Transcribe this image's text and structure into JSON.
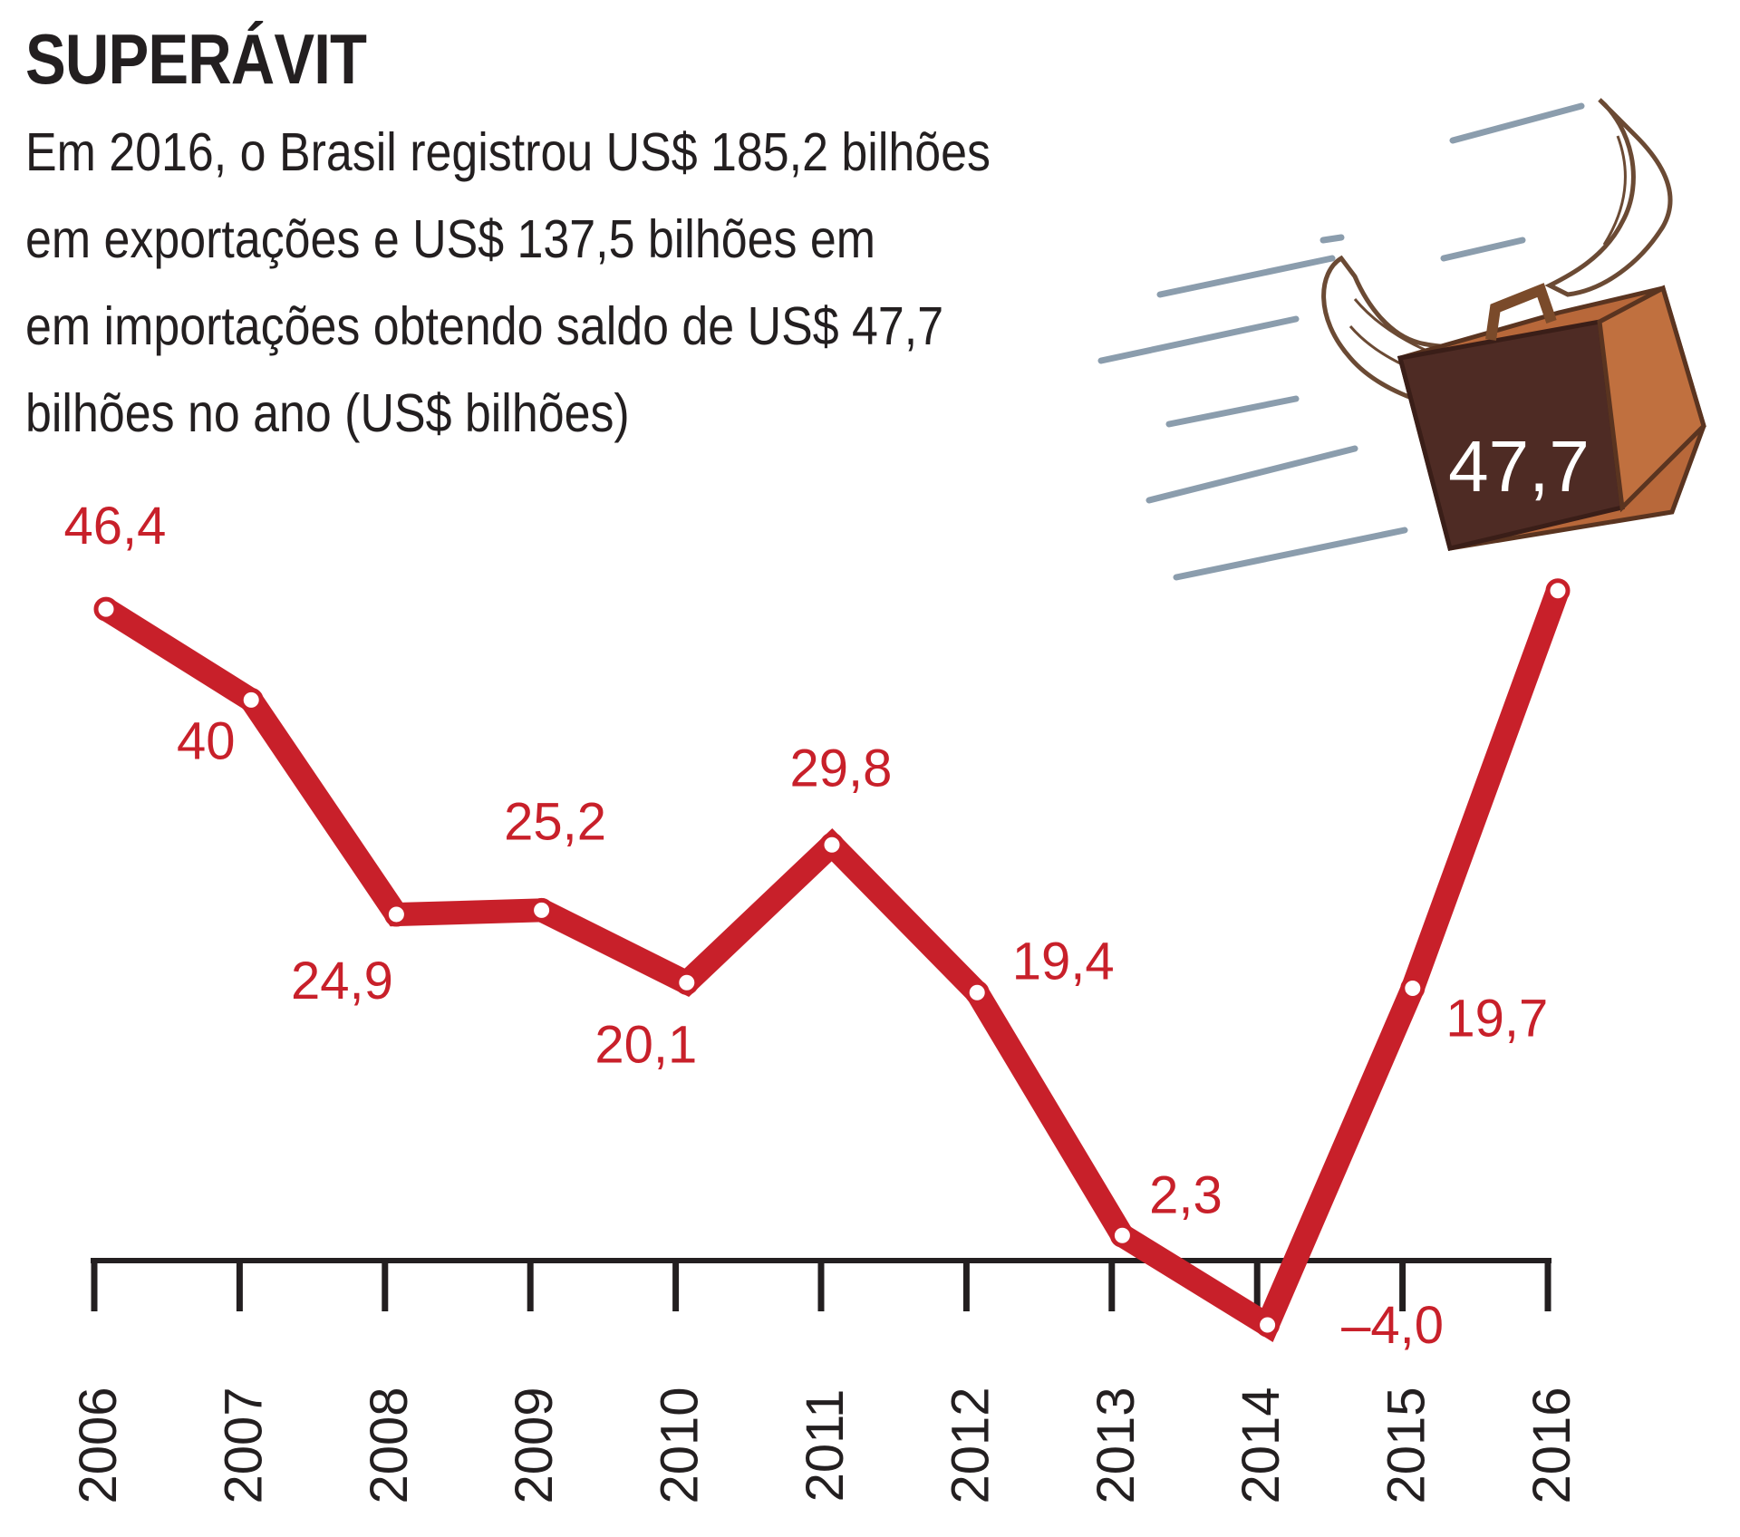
{
  "header": {
    "title": "SUPERÁVIT",
    "subtitle_lines": [
      "Em 2016, o Brasil registrou US$ 185,2 bilhões",
      "em exportações e US$ 137,5 bilhões em",
      "em importações obtendo saldo de US$ 47,7",
      "bilhões no ano (US$ bilhões)"
    ]
  },
  "chart_data": {
    "type": "line",
    "title": "SUPERÁVIT",
    "x": [
      "2006",
      "2007",
      "2008",
      "2009",
      "2010",
      "2011",
      "2012",
      "2013",
      "2014",
      "2015",
      "2016"
    ],
    "series": [
      {
        "values": [
          46.4,
          40,
          24.9,
          25.2,
          20.1,
          29.8,
          19.4,
          2.3,
          -4.0,
          19.7,
          47.7
        ],
        "labels": [
          "46,4",
          "40",
          "24,9",
          "25,2",
          "20,1",
          "29,8",
          "19,4",
          "2,3",
          "–4,0",
          "19,7",
          "47,7"
        ]
      }
    ],
    "ylim": [
      -4,
      48
    ],
    "grid": false,
    "colors": {
      "line": "#c8202a",
      "axis": "#231f20",
      "marker_fill": "#ffffff"
    },
    "highlight": {
      "year": "2016",
      "label": "47,7",
      "icon": "flying-briefcase-icon"
    }
  }
}
